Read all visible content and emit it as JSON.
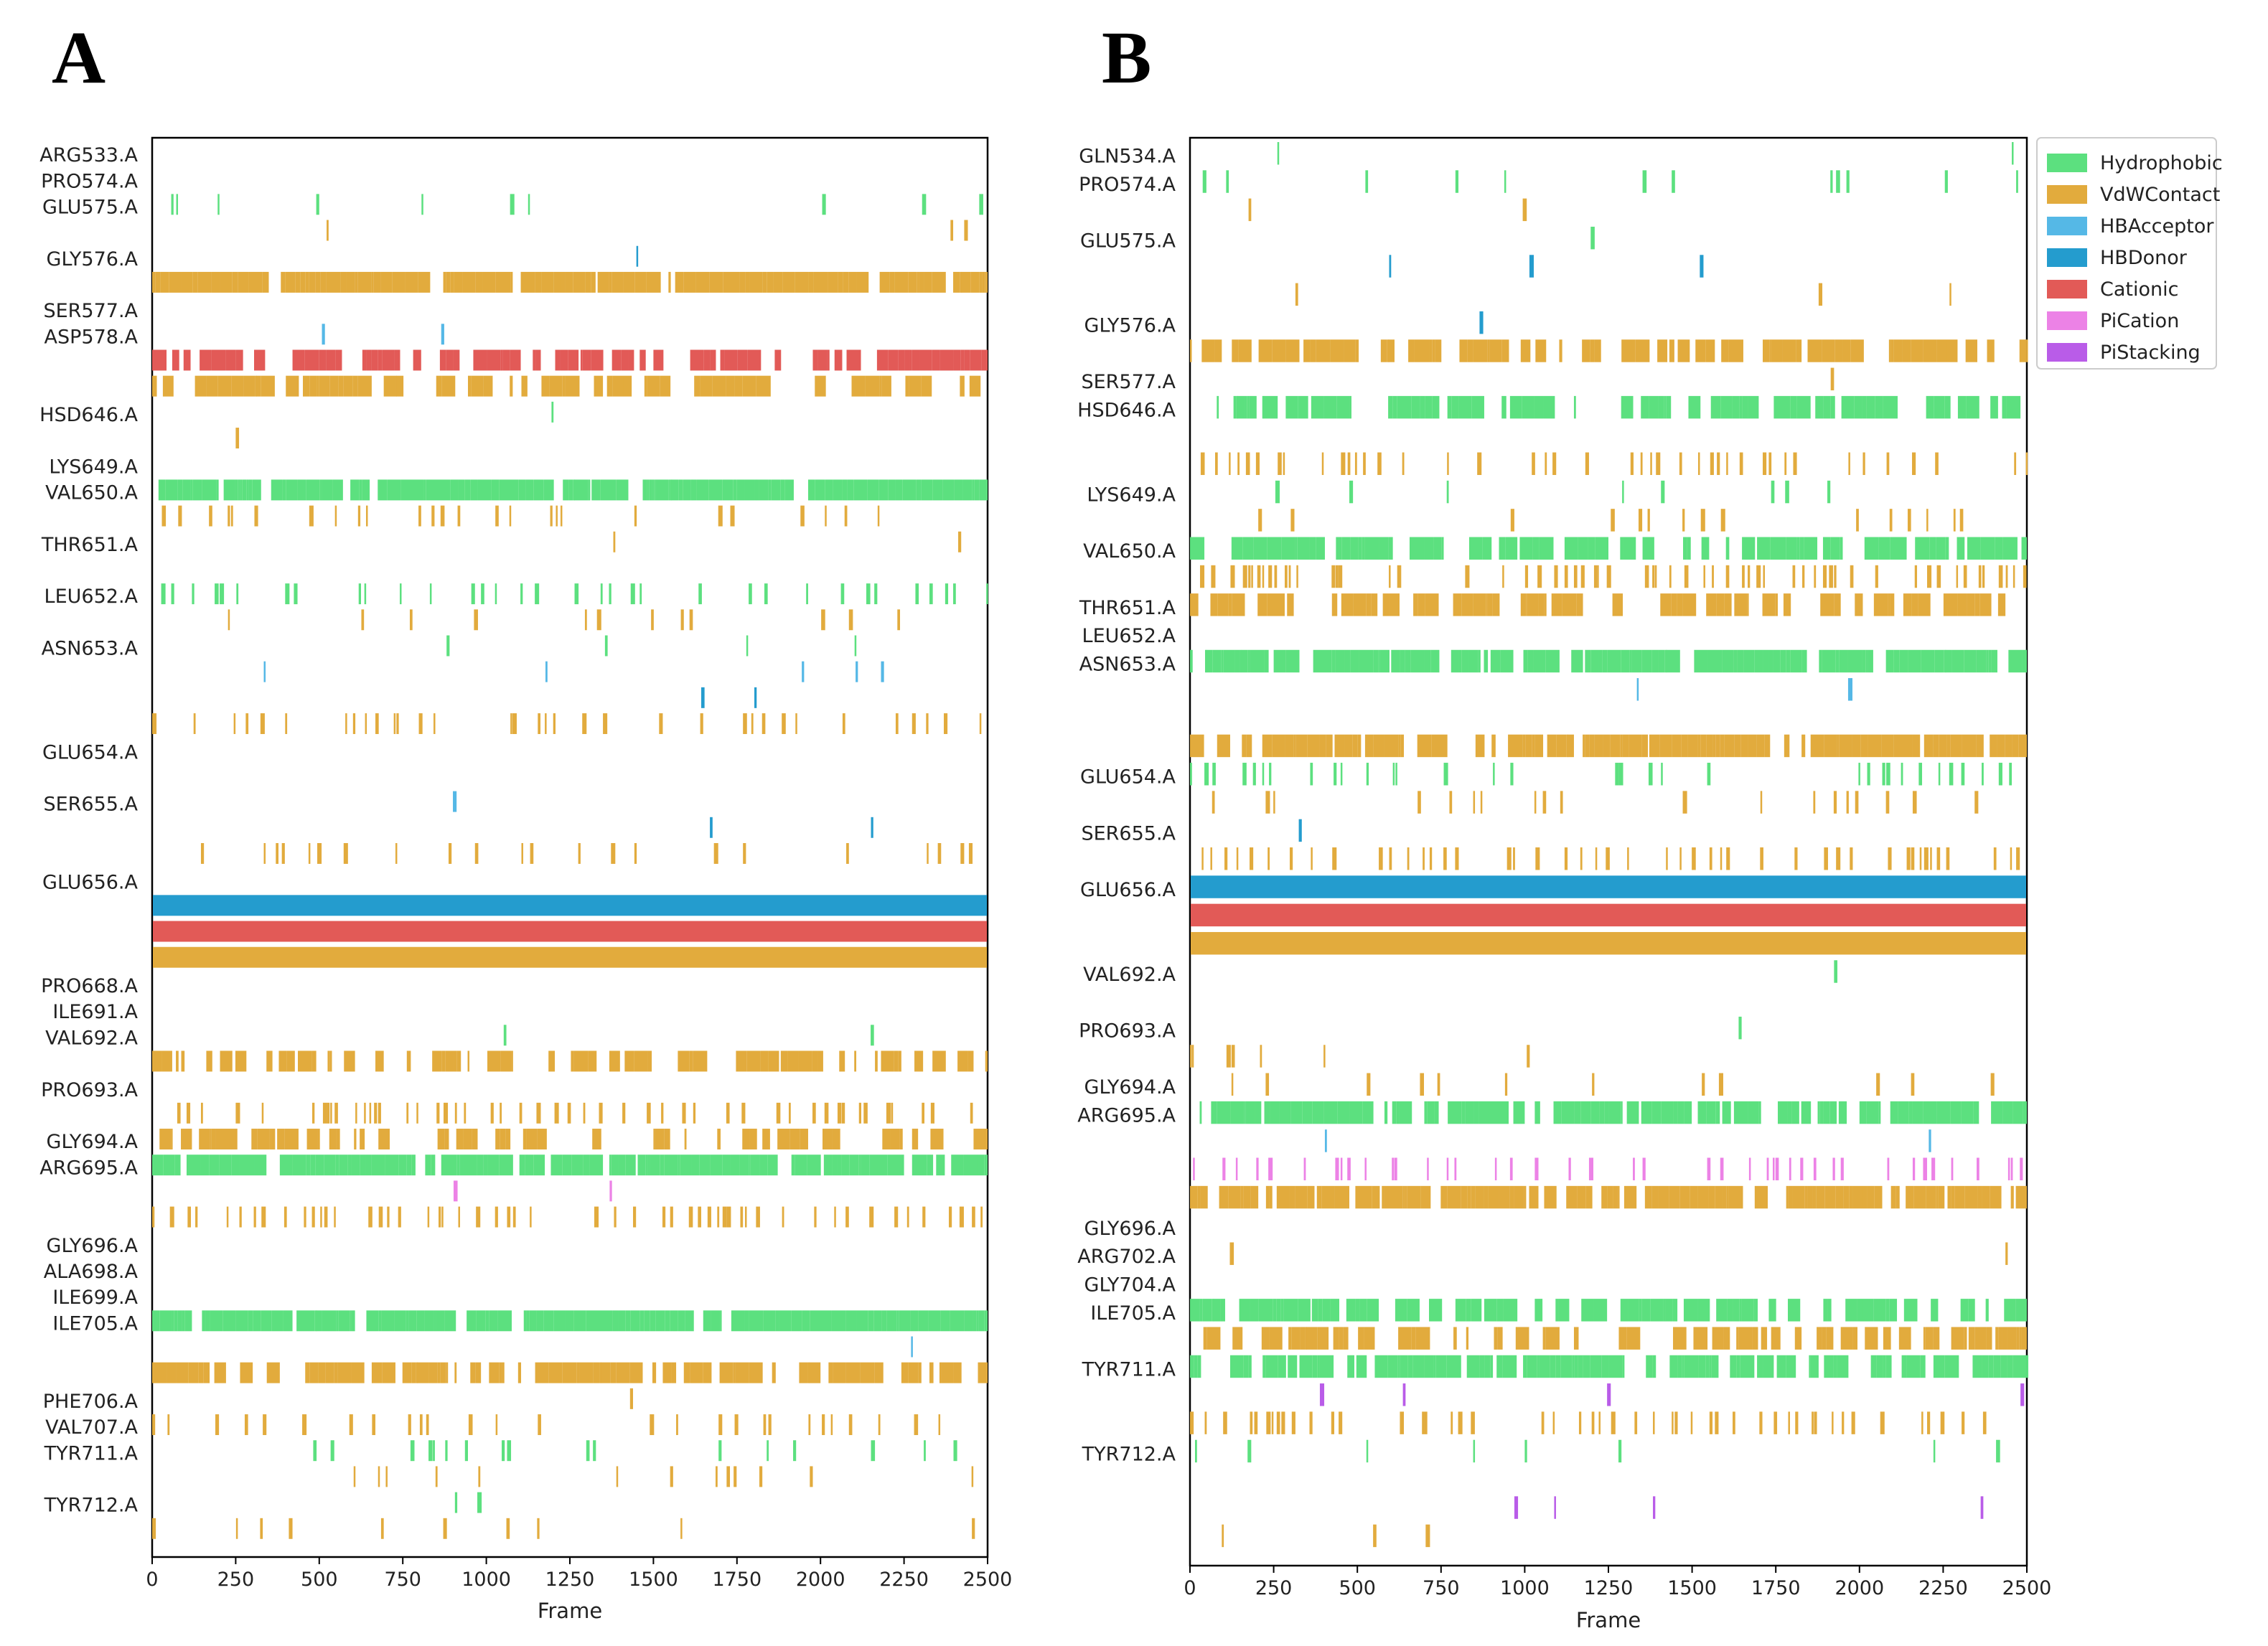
{
  "chart_data": [
    {
      "panel": "A",
      "type": "event-raster",
      "xlabel": "Frame",
      "xlim": [
        0,
        2500
      ],
      "xticks": [
        "0",
        "250",
        "500",
        "750",
        "1000",
        "1250",
        "1500",
        "1750",
        "2000",
        "2250",
        "2500"
      ],
      "residue_labels": [
        "ARG533.A",
        "PRO574.A",
        "GLU575.A",
        "GLY576.A",
        "SER577.A",
        "ASP578.A",
        "HSD646.A",
        "LYS649.A",
        "VAL650.A",
        "THR651.A",
        "LEU652.A",
        "ASN653.A",
        "GLU654.A",
        "SER655.A",
        "GLU656.A",
        "PRO668.A",
        "ILE691.A",
        "VAL692.A",
        "PRO693.A",
        "GLY694.A",
        "ARG695.A",
        "GLY696.A",
        "ALA698.A",
        "ILE699.A",
        "ILE705.A",
        "PHE706.A",
        "VAL707.A",
        "TYR711.A",
        "TYR712.A"
      ],
      "rows": [
        {
          "label": "ARG533.A",
          "type": "VdWContact",
          "density": 0.02,
          "seed": 1
        },
        {
          "label": "PRO574.A",
          "type": "Hydrophobic",
          "density": 0.01,
          "seed": 2
        },
        {
          "label": "GLU575.A",
          "type": "Hydrophobic",
          "density": 0.09,
          "seed": 3
        },
        {
          "label": "",
          "type": "VdWContact",
          "density": 0.05,
          "seed": 4
        },
        {
          "label": "GLY576.A",
          "type": "HBDonor",
          "density": 0.025,
          "seed": 5
        },
        {
          "label": "",
          "type": "VdWContact",
          "density": 0.93,
          "seed": 6
        },
        {
          "label": "SER577.A",
          "type": "VdWContact",
          "density": 0.0,
          "seed": 7
        },
        {
          "label": "ASP578.A",
          "type": "HBAcceptor",
          "density": 0.01,
          "seed": 8
        },
        {
          "label": "",
          "type": "Cationic",
          "density": 0.7,
          "seed": 9
        },
        {
          "label": "",
          "type": "VdWContact",
          "density": 0.6,
          "seed": 10
        },
        {
          "label": "HSD646.A",
          "type": "Hydrophobic",
          "density": 0.05,
          "seed": 11
        },
        {
          "label": "",
          "type": "VdWContact",
          "density": 0.02,
          "seed": 12
        },
        {
          "label": "LYS649.A",
          "type": "Hydrophobic",
          "density": 0.005,
          "seed": 13
        },
        {
          "label": "VAL650.A",
          "type": "Hydrophobic",
          "density": 0.88,
          "seed": 14
        },
        {
          "label": "",
          "type": "VdWContact",
          "density": 0.25,
          "seed": 15
        },
        {
          "label": "THR651.A",
          "type": "VdWContact",
          "density": 0.05,
          "seed": 16
        },
        {
          "label": "",
          "type": "VdWContact",
          "density": 0.02,
          "seed": 17
        },
        {
          "label": "LEU652.A",
          "type": "Hydrophobic",
          "density": 0.35,
          "seed": 18
        },
        {
          "label": "",
          "type": "VdWContact",
          "density": 0.15,
          "seed": 19
        },
        {
          "label": "ASN653.A",
          "type": "Hydrophobic",
          "density": 0.1,
          "seed": 20
        },
        {
          "label": "",
          "type": "HBAcceptor",
          "density": 0.05,
          "seed": 21
        },
        {
          "label": "",
          "type": "HBDonor",
          "density": 0.02,
          "seed": 22
        },
        {
          "label": "",
          "type": "VdWContact",
          "density": 0.35,
          "seed": 23
        },
        {
          "label": "GLU654.A",
          "type": "Hydrophobic",
          "density": 0.005,
          "seed": 24
        },
        {
          "label": "",
          "type": "VdWContact",
          "density": 0.005,
          "seed": 25
        },
        {
          "label": "SER655.A",
          "type": "HBAcceptor",
          "density": 0.015,
          "seed": 26
        },
        {
          "label": "",
          "type": "HBDonor",
          "density": 0.01,
          "seed": 27
        },
        {
          "label": "",
          "type": "VdWContact",
          "density": 0.3,
          "seed": 28
        },
        {
          "label": "GLU656.A",
          "type": "Hydrophobic",
          "density": 0.01,
          "seed": 29
        },
        {
          "label": "",
          "type": "HBDonor",
          "density": 1.0,
          "seed": 30
        },
        {
          "label": "",
          "type": "Cationic",
          "density": 1.0,
          "seed": 31
        },
        {
          "label": "",
          "type": "VdWContact",
          "density": 1.0,
          "seed": 32
        },
        {
          "label": "PRO668.A",
          "type": "Hydrophobic",
          "density": 0.008,
          "seed": 33
        },
        {
          "label": "ILE691.A",
          "type": "Hydrophobic",
          "density": 0.005,
          "seed": 34
        },
        {
          "label": "VAL692.A",
          "type": "Hydrophobic",
          "density": 0.015,
          "seed": 35
        },
        {
          "label": "",
          "type": "VdWContact",
          "density": 0.55,
          "seed": 36
        },
        {
          "label": "PRO693.A",
          "type": "Hydrophobic",
          "density": 0.01,
          "seed": 37
        },
        {
          "label": "",
          "type": "VdWContact",
          "density": 0.45,
          "seed": 38
        },
        {
          "label": "GLY694.A",
          "type": "VdWContact",
          "density": 0.55,
          "seed": 39
        },
        {
          "label": "ARG695.A",
          "type": "Hydrophobic",
          "density": 0.85,
          "seed": 40
        },
        {
          "label": "",
          "type": "PiCation",
          "density": 0.03,
          "seed": 41
        },
        {
          "label": "",
          "type": "VdWContact",
          "density": 0.5,
          "seed": 42
        },
        {
          "label": "GLY696.A",
          "type": "Hydrophobic",
          "density": 0.005,
          "seed": 43
        },
        {
          "label": "ALA698.A",
          "type": "Hydrophobic",
          "density": 0.005,
          "seed": 44
        },
        {
          "label": "ILE699.A",
          "type": "Hydrophobic",
          "density": 0.005,
          "seed": 45
        },
        {
          "label": "ILE705.A",
          "type": "Hydrophobic",
          "density": 0.93,
          "seed": 46
        },
        {
          "label": "",
          "type": "HBAcceptor",
          "density": 0.005,
          "seed": 47
        },
        {
          "label": "",
          "type": "VdWContact",
          "density": 0.65,
          "seed": 48
        },
        {
          "label": "PHE706.A",
          "type": "VdWContact",
          "density": 0.02,
          "seed": 49
        },
        {
          "label": "VAL707.A",
          "type": "VdWContact",
          "density": 0.3,
          "seed": 50
        },
        {
          "label": "TYR711.A",
          "type": "Hydrophobic",
          "density": 0.2,
          "seed": 51
        },
        {
          "label": "",
          "type": "VdWContact",
          "density": 0.15,
          "seed": 52
        },
        {
          "label": "TYR712.A",
          "type": "Hydrophobic",
          "density": 0.05,
          "seed": 53
        },
        {
          "label": "",
          "type": "VdWContact",
          "density": 0.15,
          "seed": 54
        }
      ]
    },
    {
      "panel": "B",
      "type": "event-raster",
      "xlabel": "Frame",
      "xlim": [
        0,
        2500
      ],
      "xticks": [
        "0",
        "250",
        "500",
        "750",
        "1000",
        "1250",
        "1500",
        "1750",
        "2000",
        "2250",
        "2500"
      ],
      "residue_labels": [
        "GLN534.A",
        "PRO574.A",
        "GLU575.A",
        "GLY576.A",
        "SER577.A",
        "HSD646.A",
        "LYS649.A",
        "VAL650.A",
        "THR651.A",
        "LEU652.A",
        "ASN653.A",
        "GLU654.A",
        "SER655.A",
        "GLU656.A",
        "VAL692.A",
        "PRO693.A",
        "GLY694.A",
        "ARG695.A",
        "GLY696.A",
        "ARG702.A",
        "GLY704.A",
        "ILE705.A",
        "TYR711.A",
        "TYR712.A"
      ],
      "legend": [
        "Hydrophobic",
        "VdWContact",
        "HBAcceptor",
        "HBDonor",
        "Cationic",
        "PiCation",
        "PiStacking"
      ],
      "colors": {
        "Hydrophobic": "#5ce07f",
        "VdWContact": "#e2ab3d",
        "HBAcceptor": "#55b8e6",
        "HBDonor": "#249cce",
        "Cationic": "#e25a57",
        "PiCation": "#ec82e6",
        "PiStacking": "#b95ce8"
      },
      "rows": [
        {
          "label": "GLN534.A",
          "type": "Hydrophobic",
          "density": 0.005,
          "seed": 101
        },
        {
          "label": "PRO574.A",
          "type": "Hydrophobic",
          "density": 0.15,
          "seed": 102
        },
        {
          "label": "",
          "type": "VdWContact",
          "density": 0.05,
          "seed": 103
        },
        {
          "label": "GLU575.A",
          "type": "Hydrophobic",
          "density": 0.03,
          "seed": 104
        },
        {
          "label": "",
          "type": "HBDonor",
          "density": 0.04,
          "seed": 105
        },
        {
          "label": "",
          "type": "VdWContact",
          "density": 0.04,
          "seed": 106
        },
        {
          "label": "GLY576.A",
          "type": "HBDonor",
          "density": 0.03,
          "seed": 107
        },
        {
          "label": "",
          "type": "VdWContact",
          "density": 0.65,
          "seed": 108
        },
        {
          "label": "SER577.A",
          "type": "VdWContact",
          "density": 0.005,
          "seed": 109
        },
        {
          "label": "HSD646.A",
          "type": "Hydrophobic",
          "density": 0.65,
          "seed": 110
        },
        {
          "label": "",
          "type": "PiStacking",
          "density": 0.01,
          "seed": 111
        },
        {
          "label": "",
          "type": "VdWContact",
          "density": 0.4,
          "seed": 112
        },
        {
          "label": "LYS649.A",
          "type": "Hydrophobic",
          "density": 0.1,
          "seed": 113
        },
        {
          "label": "",
          "type": "VdWContact",
          "density": 0.2,
          "seed": 114
        },
        {
          "label": "VAL650.A",
          "type": "Hydrophobic",
          "density": 0.65,
          "seed": 115
        },
        {
          "label": "",
          "type": "VdWContact",
          "density": 0.5,
          "seed": 116
        },
        {
          "label": "THR651.A",
          "type": "VdWContact",
          "density": 0.55,
          "seed": 117
        },
        {
          "label": "LEU652.A",
          "type": "VdWContact",
          "density": 0.01,
          "seed": 118
        },
        {
          "label": "ASN653.A",
          "type": "Hydrophobic",
          "density": 0.85,
          "seed": 119
        },
        {
          "label": "",
          "type": "HBAcceptor",
          "density": 0.005,
          "seed": 120
        },
        {
          "label": "",
          "type": "HBDonor",
          "density": 0.02,
          "seed": 121
        },
        {
          "label": "",
          "type": "VdWContact",
          "density": 0.8,
          "seed": 122
        },
        {
          "label": "GLU654.A",
          "type": "Hydrophobic",
          "density": 0.3,
          "seed": 123
        },
        {
          "label": "",
          "type": "VdWContact",
          "density": 0.25,
          "seed": 124
        },
        {
          "label": "SER655.A",
          "type": "HBDonor",
          "density": 0.04,
          "seed": 125
        },
        {
          "label": "",
          "type": "VdWContact",
          "density": 0.45,
          "seed": 126
        },
        {
          "label": "GLU656.A",
          "type": "HBDonor",
          "density": 1.0,
          "seed": 127
        },
        {
          "label": "",
          "type": "Cationic",
          "density": 1.0,
          "seed": 128
        },
        {
          "label": "",
          "type": "VdWContact",
          "density": 1.0,
          "seed": 129
        },
        {
          "label": "VAL692.A",
          "type": "Hydrophobic",
          "density": 0.03,
          "seed": 130
        },
        {
          "label": "",
          "type": "VdWContact",
          "density": 0.02,
          "seed": 131
        },
        {
          "label": "PRO693.A",
          "type": "Hydrophobic",
          "density": 0.04,
          "seed": 132
        },
        {
          "label": "",
          "type": "VdWContact",
          "density": 0.12,
          "seed": 133
        },
        {
          "label": "GLY694.A",
          "type": "VdWContact",
          "density": 0.15,
          "seed": 134
        },
        {
          "label": "ARG695.A",
          "type": "Hydrophobic",
          "density": 0.8,
          "seed": 135
        },
        {
          "label": "",
          "type": "HBAcceptor",
          "density": 0.01,
          "seed": 136
        },
        {
          "label": "",
          "type": "PiCation",
          "density": 0.45,
          "seed": 137
        },
        {
          "label": "",
          "type": "VdWContact",
          "density": 0.75,
          "seed": 138
        },
        {
          "label": "GLY696.A",
          "type": "VdWContact",
          "density": 0.005,
          "seed": 139
        },
        {
          "label": "ARG702.A",
          "type": "VdWContact",
          "density": 0.04,
          "seed": 140
        },
        {
          "label": "GLY704.A",
          "type": "VdWContact",
          "density": 0.0,
          "seed": 141
        },
        {
          "label": "ILE705.A",
          "type": "Hydrophobic",
          "density": 0.7,
          "seed": 142
        },
        {
          "label": "",
          "type": "VdWContact",
          "density": 0.55,
          "seed": 143
        },
        {
          "label": "TYR711.A",
          "type": "Hydrophobic",
          "density": 0.75,
          "seed": 144
        },
        {
          "label": "",
          "type": "PiStacking",
          "density": 0.05,
          "seed": 145
        },
        {
          "label": "",
          "type": "VdWContact",
          "density": 0.45,
          "seed": 146
        },
        {
          "label": "TYR712.A",
          "type": "Hydrophobic",
          "density": 0.15,
          "seed": 147
        },
        {
          "label": "",
          "type": "HBDonor",
          "density": 0.005,
          "seed": 148
        },
        {
          "label": "",
          "type": "PiStacking",
          "density": 0.05,
          "seed": 149
        },
        {
          "label": "",
          "type": "VdWContact",
          "density": 0.05,
          "seed": 150
        }
      ]
    }
  ]
}
